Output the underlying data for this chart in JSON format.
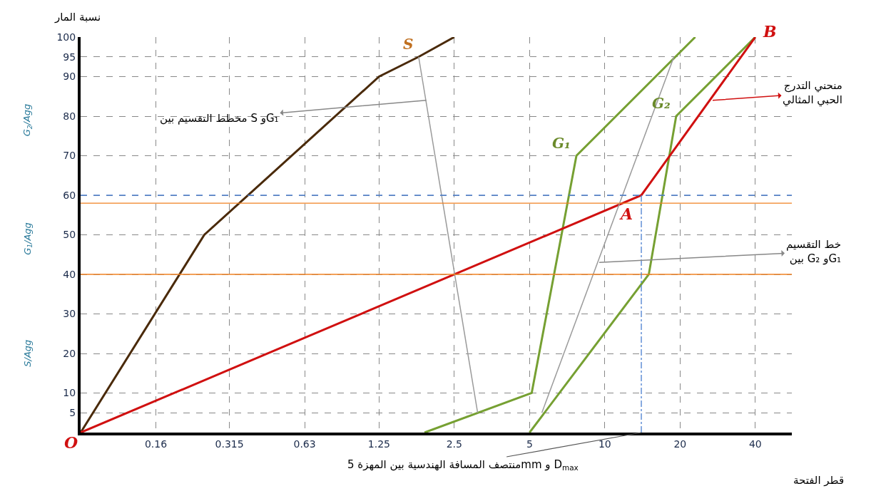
{
  "chart_data": {
    "type": "line",
    "xlabel": "قطر الفتحة",
    "ylabel": "نسبة المار",
    "log": "x",
    "xlim": [
      0.08,
      56
    ],
    "xticks": [
      {
        "value": 0.08,
        "label": null
      },
      0.16,
      0.315,
      0.63,
      1.25,
      2.5,
      5,
      10,
      20,
      40
    ],
    "ylim": [
      0,
      100
    ],
    "yticks": [
      5,
      10,
      20,
      30,
      40,
      50,
      60,
      70,
      80,
      90,
      95,
      100
    ],
    "grid": true,
    "legend": false,
    "marker": "none",
    "line_style": "solid",
    "series": [
      {
        "name": "S",
        "color": "#4a2a0a",
        "x": [
          0.08,
          0.25,
          1.25,
          1.8,
          2.5
        ],
        "values": [
          0,
          50,
          90,
          95,
          100
        ]
      },
      {
        "name": "G₁",
        "color": "#76a032",
        "x": [
          1.9,
          5.1,
          7.7,
          23
        ],
        "values": [
          0,
          10,
          70,
          100
        ]
      },
      {
        "name": "G₂",
        "color": "#76a032",
        "x": [
          5,
          15,
          19.3,
          40
        ],
        "values": [
          0,
          40,
          80,
          100
        ]
      },
      {
        "color": "#d01010",
        "x": [
          0.08,
          14,
          40
        ],
        "values": [
          0,
          60,
          100
        ]
      },
      {
        "color": "#9a9a9a",
        "x": [
          1.8,
          3.1
        ],
        "values": [
          95,
          5
        ]
      },
      {
        "color": "#9a9a9a",
        "x": [
          5.6,
          18.9
        ],
        "values": [
          5,
          95
        ]
      }
    ],
    "ref_lines": [
      {
        "axis": "y",
        "value": 60,
        "color": "#4a7fd0",
        "line_style": "dashed"
      },
      {
        "axis": "y",
        "value": 58,
        "color": "#f08020",
        "line_style": "solid"
      },
      {
        "axis": "y",
        "value": 40,
        "color": "#f08020",
        "line_style": "solid"
      },
      {
        "axis": "x",
        "value": 14,
        "color": "#4a7fd0",
        "line_style": "dashdot"
      }
    ],
    "annotations": [
      {
        "text": "O",
        "x": 0.08,
        "y": 0
      },
      {
        "text": "A",
        "x": 14,
        "y": 60
      },
      {
        "text": "B",
        "x": 40,
        "y": 100
      },
      {
        "text": "مخطط التقسيم بين S وG₁",
        "x": 1.93,
        "y": 84
      },
      {
        "text": "منحني التدرج\nالحبي المثالي",
        "x": 27,
        "y": 84
      },
      {
        "text": "خط التقسيم\nبين G₂ وG₁",
        "x": 9.5,
        "y": 43
      },
      {
        "text": "منتصف المسافة الهندسية بين المهزة 5mm و D$_{max}$",
        "x": 14,
        "y": 0
      },
      "G$_{2}$/Agg",
      "G$_{1}$/Agg",
      "S/Agg"
    ]
  }
}
